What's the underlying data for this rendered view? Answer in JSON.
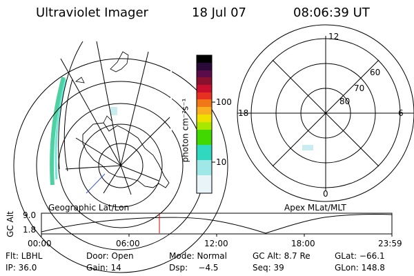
{
  "header": {
    "instrument": "Ultraviolet Imager",
    "date": "18 Jul 07",
    "time": "08:06:39 UT"
  },
  "left_panel": {
    "label": "Geographic Lat/Lon"
  },
  "right_panel": {
    "label": "Apex MLat/MLT",
    "mlt_labels": {
      "top": "12",
      "left": "18",
      "right": "6",
      "bottom": "0"
    },
    "lat_labels": [
      "60",
      "70",
      "80"
    ]
  },
  "colorbar": {
    "unit_label": "photon cm⁻²s⁻¹",
    "ticks": [
      "100",
      "10"
    ],
    "colors": [
      "#000000",
      "#2b0a3a",
      "#5a0c4a",
      "#8a1030",
      "#c8102e",
      "#e83020",
      "#f07818",
      "#f8b020",
      "#f0e000",
      "#a8e800",
      "#40d800",
      "#30d8c0",
      "#a0e8e8",
      "#e8f4f8"
    ]
  },
  "timeline": {
    "ylabel": "GC Alt",
    "y_ticks": [
      "9.0",
      "1.8"
    ],
    "x_ticks": [
      "00:00",
      "06:00",
      "12:00",
      "18:00",
      "23:59"
    ],
    "marker_color": "#dd0000"
  },
  "footer": {
    "row1": [
      {
        "key": "filter",
        "text": "Flt: LBHL"
      },
      {
        "key": "door",
        "text": "Door: Open"
      },
      {
        "key": "mode",
        "text": "Mode: Normal"
      },
      {
        "key": "gcalt",
        "text": "GC Alt: 8.7 Re"
      },
      {
        "key": "glat",
        "text": "GLat: −66.1"
      }
    ],
    "row2": [
      {
        "key": "ip",
        "text": "IP: 36.0"
      },
      {
        "key": "gain",
        "text": "Gain: 14"
      },
      {
        "key": "dsp",
        "text": "Dsp:    −4.5"
      },
      {
        "key": "seq",
        "text": "Seq: 39"
      },
      {
        "key": "glon",
        "text": "GLon: 148.8"
      }
    ]
  }
}
